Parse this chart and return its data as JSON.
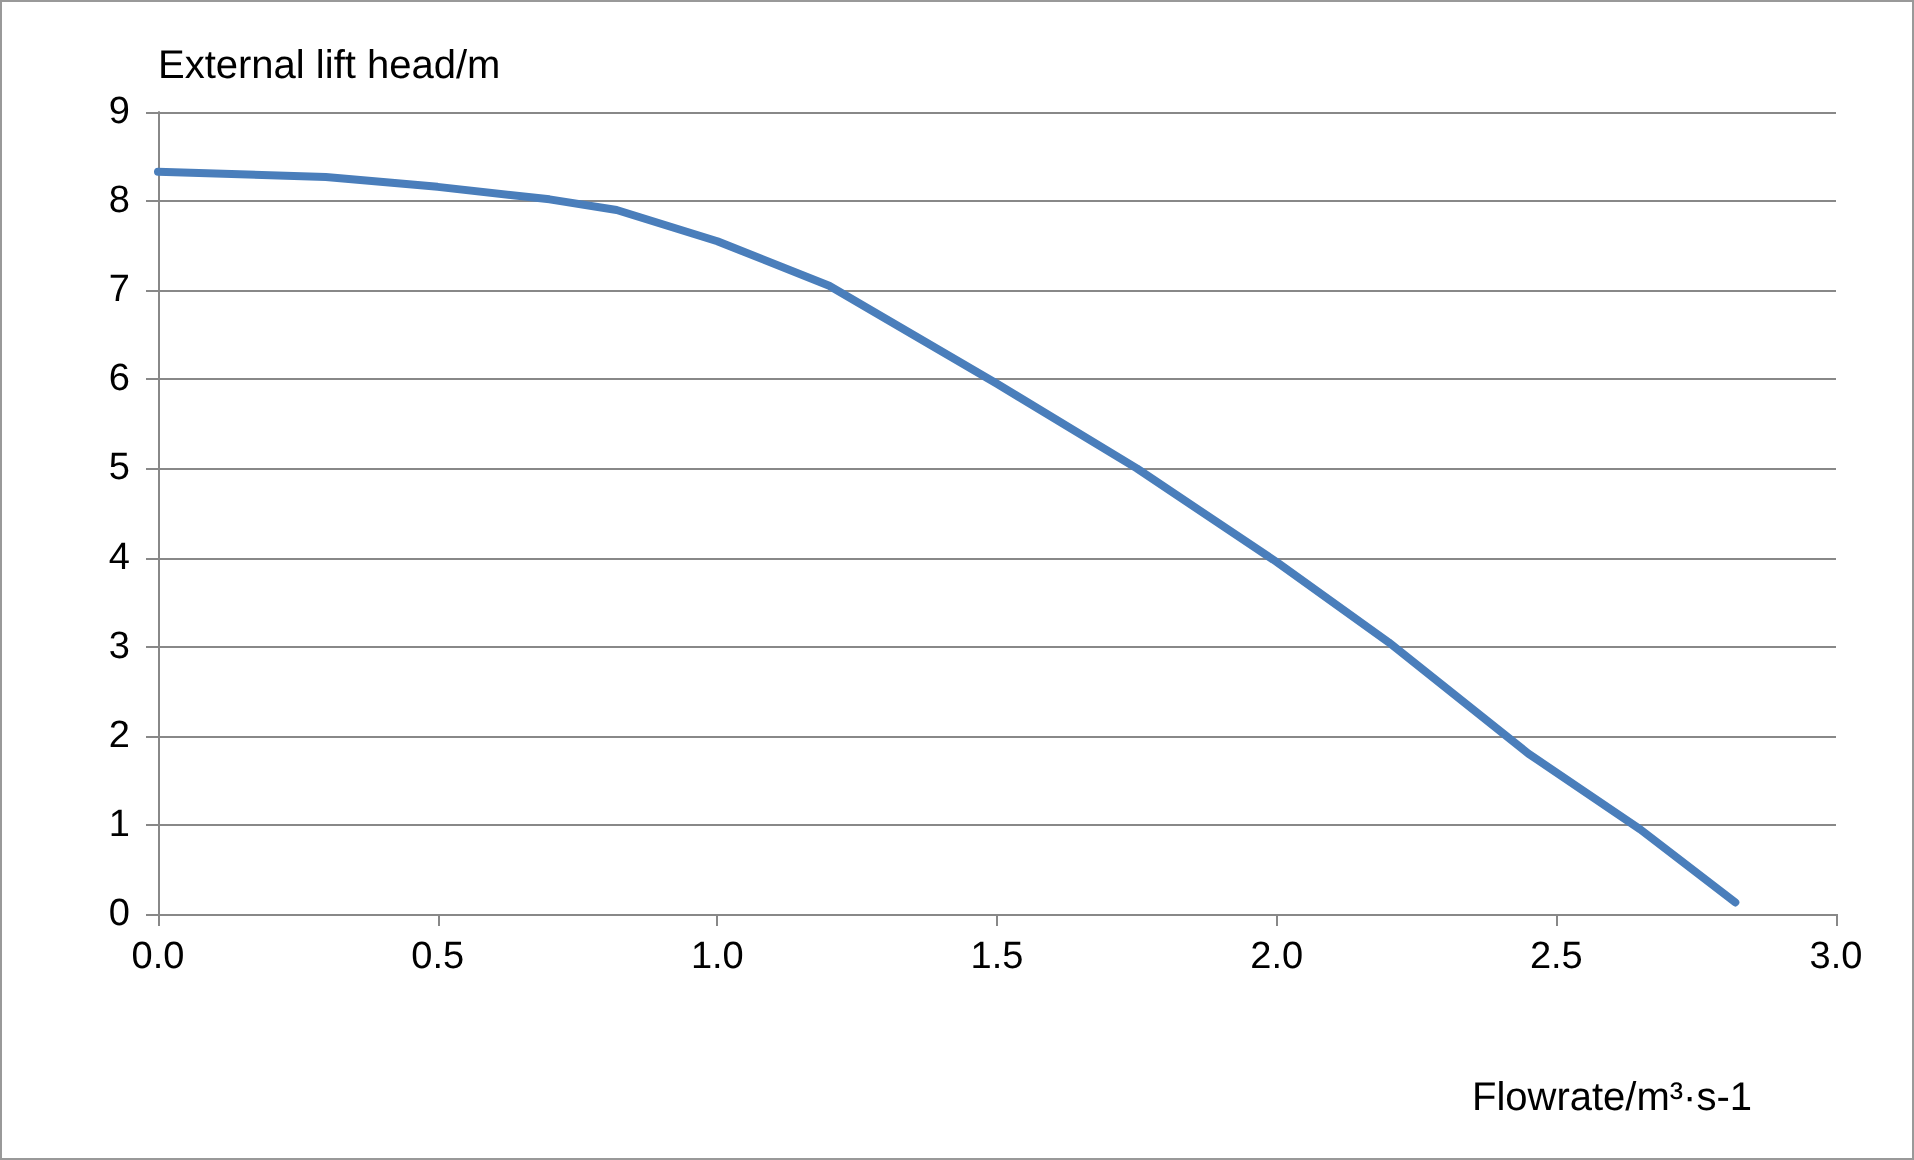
{
  "chart_data": {
    "type": "line",
    "xlabel": "Flowrate/m³·s-1",
    "ylabel": "External lift head/m",
    "x": [
      0,
      0.3,
      0.5,
      0.7,
      0.82,
      1.0,
      1.2,
      1.5,
      1.75,
      2.0,
      2.2,
      2.45,
      2.65,
      2.82
    ],
    "series": [
      {
        "color": "#4a7ebb",
        "values": [
          8.33,
          8.27,
          8.16,
          8.02,
          7.9,
          7.55,
          7.05,
          5.95,
          5.0,
          3.95,
          3.05,
          1.8,
          0.95,
          0.13
        ]
      }
    ],
    "xlim": [
      0,
      3
    ],
    "xticks": [
      {
        "value": 0,
        "label": "0.0"
      },
      {
        "value": 0.5,
        "label": "0.5"
      },
      {
        "value": 1,
        "label": "1.0"
      },
      {
        "value": 1.5,
        "label": "1.5"
      },
      {
        "value": 2,
        "label": "2.0"
      },
      {
        "value": 2.5,
        "label": "2.5"
      },
      {
        "value": 3,
        "label": "3.0"
      }
    ],
    "ylim": [
      0,
      9
    ],
    "yticks": [
      0,
      1,
      2,
      3,
      4,
      5,
      6,
      7,
      8,
      9
    ],
    "grid": "y",
    "marker": "none",
    "line_style": "solid"
  }
}
